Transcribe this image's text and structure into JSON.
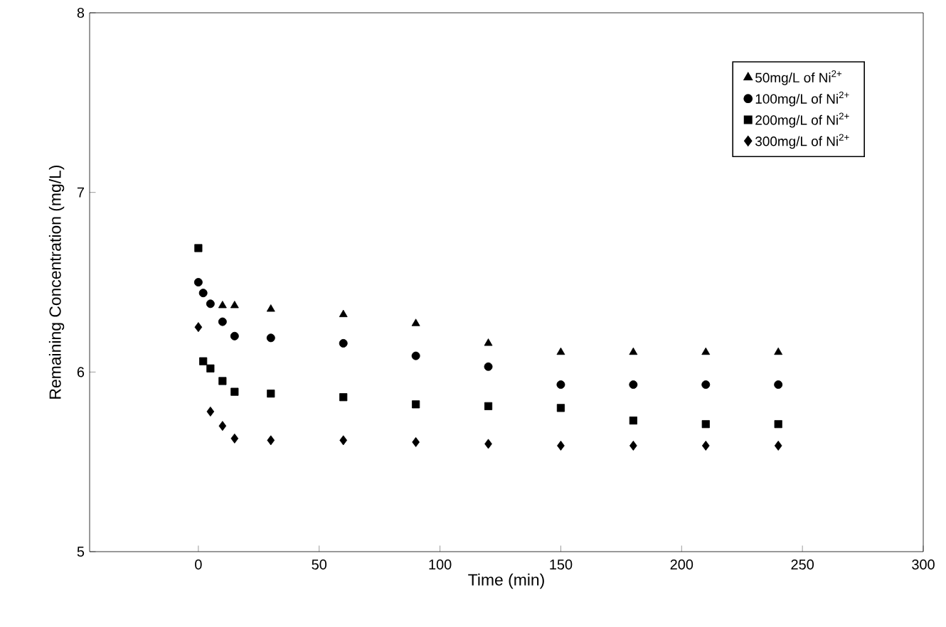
{
  "chart_data": {
    "type": "scatter",
    "xlabel": "Time (min)",
    "ylabel": "Remaining Concentration (mg/L)",
    "xlim": [
      -45,
      300
    ],
    "ylim": [
      5,
      8
    ],
    "xticks": [
      0,
      50,
      100,
      150,
      200,
      250,
      300
    ],
    "yticks": [
      5,
      6,
      7,
      8
    ],
    "grid": false,
    "legend": "top right",
    "series": [
      {
        "name": "50mg/L of Ni$^{2+}$",
        "color": "#000000",
        "marker": "triangle",
        "x": [
          10,
          15,
          30,
          60,
          90,
          120,
          150,
          180,
          210,
          240
        ],
        "values": [
          6.37,
          6.37,
          6.35,
          6.32,
          6.27,
          6.16,
          6.11,
          6.11,
          6.11,
          6.11
        ]
      },
      {
        "name": "100mg/L of Ni$^{2+}$",
        "color": "#000000",
        "marker": "circle",
        "x": [
          0,
          2,
          5,
          10,
          15,
          30,
          60,
          90,
          120,
          150,
          180,
          210,
          240
        ],
        "values": [
          6.5,
          6.44,
          6.38,
          6.28,
          6.2,
          6.19,
          6.16,
          6.09,
          6.03,
          5.93,
          5.93,
          5.93,
          5.93
        ]
      },
      {
        "name": "200mg/L of Ni$^{2+}$",
        "color": "#000000",
        "marker": "square",
        "x": [
          0,
          2,
          5,
          10,
          15,
          30,
          60,
          90,
          120,
          150,
          180,
          210,
          240
        ],
        "values": [
          6.69,
          6.06,
          6.02,
          5.95,
          5.89,
          5.88,
          5.86,
          5.82,
          5.81,
          5.8,
          5.73,
          5.71,
          5.71
        ]
      },
      {
        "name": "300mg/L of Ni$^{2+}$",
        "color": "#000000",
        "marker": "diamond",
        "x": [
          0,
          5,
          10,
          15,
          30,
          60,
          90,
          120,
          150,
          180,
          210,
          240
        ],
        "values": [
          6.25,
          5.78,
          5.7,
          5.63,
          5.62,
          5.62,
          5.61,
          5.6,
          5.59,
          5.59,
          5.59,
          5.59
        ]
      }
    ]
  }
}
